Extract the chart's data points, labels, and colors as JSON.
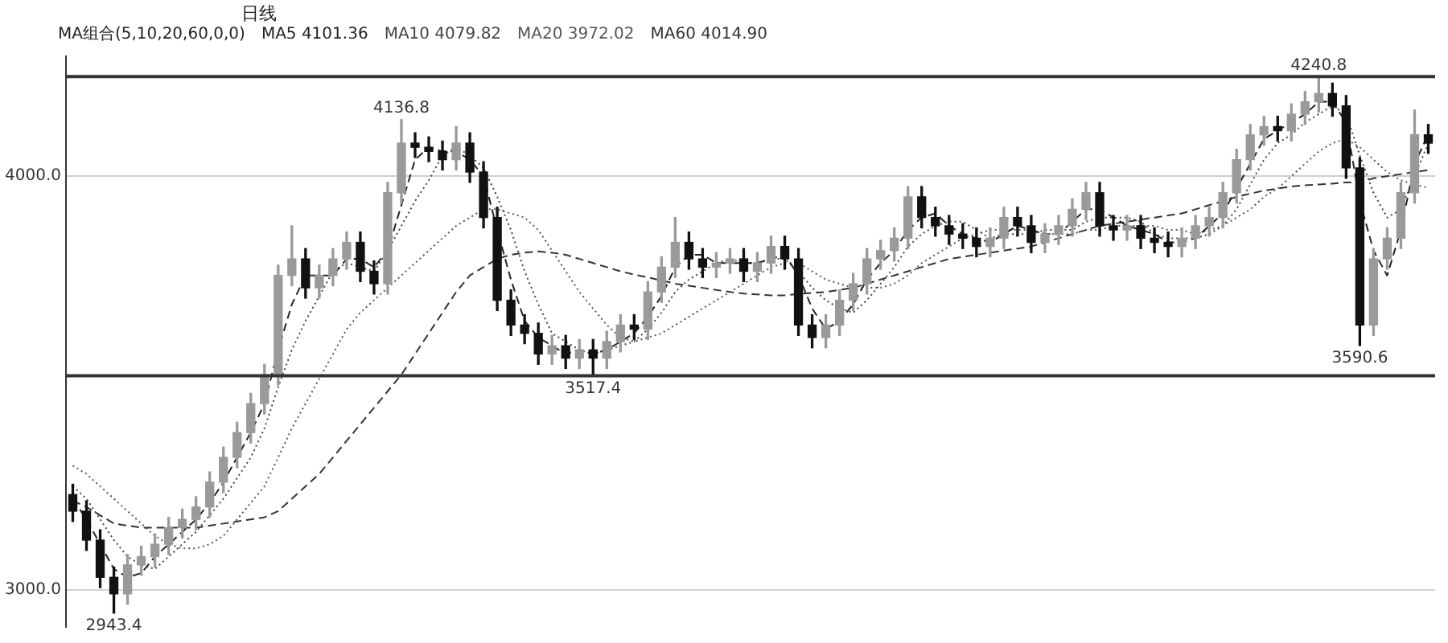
{
  "chart_data": {
    "type": "candlestick",
    "title": "日线",
    "subtitle": "MA组合(5,10,20,60,0,0)",
    "categories": [
      null,
      null,
      null,
      null,
      null,
      null,
      null,
      null,
      null,
      null,
      null,
      null,
      null,
      null,
      null,
      null,
      null,
      null,
      null,
      null,
      null,
      null,
      null,
      null,
      null,
      null,
      null,
      null,
      null,
      null,
      null,
      null,
      null,
      null,
      null,
      null,
      null,
      null,
      null,
      null,
      null,
      null,
      null,
      null,
      null,
      null,
      null,
      null,
      null,
      null,
      null,
      null,
      null,
      null,
      null,
      null,
      null,
      null,
      null,
      null,
      null,
      null,
      null,
      null,
      null,
      null,
      null,
      null,
      null,
      null,
      null,
      null,
      null,
      null,
      null,
      null,
      null,
      null,
      null,
      null,
      null,
      null,
      null,
      null,
      null,
      null,
      null,
      null,
      null,
      null,
      null,
      null,
      null,
      null,
      null,
      null,
      null,
      null,
      null,
      null
    ],
    "ohlc": [
      [
        3230,
        3255,
        3165,
        3190
      ],
      [
        3190,
        3215,
        3095,
        3120
      ],
      [
        3120,
        3145,
        3005,
        3030
      ],
      [
        3030,
        3055,
        2943.4,
        2990
      ],
      [
        2990,
        3085,
        2965,
        3060
      ],
      [
        3060,
        3105,
        3035,
        3080
      ],
      [
        3080,
        3135,
        3055,
        3110
      ],
      [
        3110,
        3175,
        3085,
        3150
      ],
      [
        3150,
        3195,
        3125,
        3170
      ],
      [
        3170,
        3225,
        3145,
        3200
      ],
      [
        3200,
        3285,
        3175,
        3260
      ],
      [
        3260,
        3345,
        3235,
        3320
      ],
      [
        3320,
        3405,
        3295,
        3380
      ],
      [
        3380,
        3475,
        3355,
        3450
      ],
      [
        3450,
        3545,
        3425,
        3520
      ],
      [
        3520,
        3785,
        3495,
        3760
      ],
      [
        3760,
        3880,
        3735,
        3800
      ],
      [
        3800,
        3825,
        3705,
        3730
      ],
      [
        3730,
        3785,
        3705,
        3760
      ],
      [
        3760,
        3825,
        3735,
        3800
      ],
      [
        3800,
        3865,
        3775,
        3840
      ],
      [
        3840,
        3865,
        3745,
        3770
      ],
      [
        3770,
        3795,
        3715,
        3740
      ],
      [
        3740,
        3985,
        3715,
        3960
      ],
      [
        3960,
        4136.8,
        3935,
        4080
      ],
      [
        4080,
        4105,
        4045,
        4070
      ],
      [
        4070,
        4095,
        4035,
        4060
      ],
      [
        4060,
        4085,
        4015,
        4040
      ],
      [
        4040,
        4120,
        4015,
        4080
      ],
      [
        4080,
        4105,
        3985,
        4010
      ],
      [
        4010,
        4035,
        3875,
        3900
      ],
      [
        3900,
        3925,
        3675,
        3700
      ],
      [
        3700,
        3725,
        3615,
        3640
      ],
      [
        3640,
        3665,
        3595,
        3620
      ],
      [
        3620,
        3645,
        3545,
        3570
      ],
      [
        3570,
        3615,
        3545,
        3590
      ],
      [
        3590,
        3615,
        3535,
        3560
      ],
      [
        3560,
        3605,
        3535,
        3580
      ],
      [
        3580,
        3605,
        3517.4,
        3560
      ],
      [
        3560,
        3625,
        3535,
        3600
      ],
      [
        3600,
        3665,
        3575,
        3640
      ],
      [
        3640,
        3665,
        3605,
        3630
      ],
      [
        3630,
        3745,
        3605,
        3720
      ],
      [
        3720,
        3805,
        3695,
        3780
      ],
      [
        3780,
        3900,
        3755,
        3840
      ],
      [
        3840,
        3865,
        3775,
        3800
      ],
      [
        3800,
        3825,
        3755,
        3780
      ],
      [
        3780,
        3815,
        3755,
        3790
      ],
      [
        3790,
        3825,
        3765,
        3800
      ],
      [
        3800,
        3825,
        3745,
        3770
      ],
      [
        3770,
        3815,
        3745,
        3790
      ],
      [
        3790,
        3855,
        3765,
        3830
      ],
      [
        3830,
        3855,
        3775,
        3800
      ],
      [
        3800,
        3825,
        3615,
        3640
      ],
      [
        3640,
        3665,
        3585,
        3610
      ],
      [
        3610,
        3665,
        3585,
        3640
      ],
      [
        3640,
        3725,
        3615,
        3700
      ],
      [
        3700,
        3765,
        3675,
        3740
      ],
      [
        3740,
        3825,
        3715,
        3800
      ],
      [
        3800,
        3845,
        3775,
        3820
      ],
      [
        3820,
        3875,
        3795,
        3850
      ],
      [
        3850,
        3975,
        3825,
        3950
      ],
      [
        3950,
        3975,
        3875,
        3900
      ],
      [
        3900,
        3925,
        3855,
        3880
      ],
      [
        3880,
        3905,
        3835,
        3860
      ],
      [
        3860,
        3885,
        3825,
        3850
      ],
      [
        3850,
        3875,
        3805,
        3830
      ],
      [
        3830,
        3875,
        3805,
        3850
      ],
      [
        3850,
        3925,
        3825,
        3900
      ],
      [
        3900,
        3925,
        3855,
        3880
      ],
      [
        3880,
        3905,
        3815,
        3840
      ],
      [
        3840,
        3885,
        3815,
        3860
      ],
      [
        3860,
        3905,
        3835,
        3880
      ],
      [
        3880,
        3945,
        3855,
        3920
      ],
      [
        3920,
        3985,
        3895,
        3960
      ],
      [
        3960,
        3985,
        3855,
        3880
      ],
      [
        3880,
        3905,
        3845,
        3870
      ],
      [
        3870,
        3905,
        3845,
        3880
      ],
      [
        3880,
        3905,
        3825,
        3850
      ],
      [
        3850,
        3875,
        3815,
        3840
      ],
      [
        3840,
        3865,
        3805,
        3830
      ],
      [
        3830,
        3875,
        3805,
        3850
      ],
      [
        3850,
        3905,
        3825,
        3880
      ],
      [
        3880,
        3925,
        3855,
        3900
      ],
      [
        3900,
        3985,
        3875,
        3960
      ],
      [
        3960,
        4065,
        3935,
        4040
      ],
      [
        4040,
        4125,
        4015,
        4100
      ],
      [
        4100,
        4145,
        4075,
        4120
      ],
      [
        4120,
        4145,
        4085,
        4110
      ],
      [
        4110,
        4175,
        4085,
        4150
      ],
      [
        4150,
        4205,
        4125,
        4180
      ],
      [
        4180,
        4240.8,
        4155,
        4200
      ],
      [
        4200,
        4225,
        4145,
        4170
      ],
      [
        4170,
        4195,
        3995,
        4020
      ],
      [
        4020,
        4045,
        3590.6,
        3640
      ],
      [
        3640,
        3825,
        3615,
        3800
      ],
      [
        3800,
        3875,
        3775,
        3850
      ],
      [
        3850,
        3985,
        3825,
        3960
      ],
      [
        3960,
        4160,
        3935,
        4100
      ],
      [
        4100,
        4125,
        4055,
        4080
      ]
    ],
    "series": [
      {
        "name": "MA5",
        "type": "line",
        "color": "#222222",
        "line_style": "dashed",
        "values": [
          3220,
          3170,
          3110,
          3050,
          3030,
          3040,
          3080,
          3110,
          3140,
          3170,
          3210,
          3260,
          3320,
          3380,
          3450,
          3580,
          3690,
          3760,
          3760,
          3760,
          3800,
          3800,
          3780,
          3820,
          3930,
          4040,
          4070,
          4060,
          4060,
          4040,
          4000,
          3870,
          3750,
          3650,
          3610,
          3590,
          3570,
          3580,
          3570,
          3580,
          3600,
          3620,
          3660,
          3710,
          3780,
          3810,
          3810,
          3790,
          3790,
          3790,
          3790,
          3800,
          3810,
          3760,
          3680,
          3630,
          3650,
          3690,
          3750,
          3790,
          3820,
          3870,
          3900,
          3910,
          3880,
          3860,
          3850,
          3840,
          3860,
          3880,
          3870,
          3860,
          3860,
          3890,
          3920,
          3920,
          3900,
          3880,
          3870,
          3860,
          3840,
          3840,
          3850,
          3880,
          3910,
          3970,
          4030,
          4090,
          4110,
          4130,
          4150,
          4180,
          4180,
          4130,
          3940,
          3820,
          3760,
          3870,
          4030,
          4101.36
        ],
        "value_labels": [
          null,
          null,
          null,
          null,
          null,
          null,
          null,
          null,
          null,
          null,
          null,
          null,
          null,
          null,
          null,
          null,
          null,
          null,
          null,
          null,
          null,
          null,
          null,
          null,
          null,
          null,
          null,
          null,
          null,
          null,
          null,
          null,
          null,
          null,
          null,
          null,
          null,
          null,
          null,
          null,
          null,
          null,
          null,
          null,
          null,
          null,
          null,
          null,
          null,
          null,
          null,
          null,
          null,
          null,
          null,
          null,
          null,
          null,
          null,
          null,
          null,
          null,
          null,
          null,
          null,
          null,
          null,
          null,
          null,
          null,
          null,
          null,
          null,
          null,
          null,
          null,
          null,
          null,
          null,
          null,
          null,
          null,
          null,
          null,
          null,
          null,
          null,
          null,
          null,
          null,
          null,
          null,
          null,
          null,
          null,
          null,
          null,
          null,
          null,
          "4101.36"
        ]
      },
      {
        "name": "MA10",
        "type": "line",
        "color": "#444444",
        "line_style": "dotted",
        "values": [
          3250,
          3220,
          3170,
          3120,
          3080,
          3060,
          3050,
          3080,
          3110,
          3140,
          3180,
          3220,
          3270,
          3320,
          3390,
          3490,
          3580,
          3650,
          3710,
          3770,
          3790,
          3780,
          3770,
          3820,
          3880,
          3940,
          3990,
          4050,
          4070,
          4050,
          4020,
          3950,
          3870,
          3770,
          3690,
          3620,
          3600,
          3580,
          3570,
          3580,
          3590,
          3600,
          3630,
          3670,
          3720,
          3750,
          3770,
          3790,
          3800,
          3790,
          3790,
          3800,
          3800,
          3770,
          3730,
          3700,
          3680,
          3670,
          3700,
          3740,
          3780,
          3830,
          3860,
          3880,
          3890,
          3890,
          3870,
          3850,
          3860,
          3860,
          3860,
          3870,
          3870,
          3870,
          3890,
          3900,
          3900,
          3900,
          3890,
          3860,
          3850,
          3850,
          3850,
          3860,
          3880,
          3920,
          3980,
          4040,
          4080,
          4100,
          4130,
          4150,
          4170,
          4150,
          4050,
          3960,
          3900,
          3920,
          4000,
          4079.82
        ],
        "value_labels": [
          null,
          null,
          null,
          null,
          null,
          null,
          null,
          null,
          null,
          null,
          null,
          null,
          null,
          null,
          null,
          null,
          null,
          null,
          null,
          null,
          null,
          null,
          null,
          null,
          null,
          null,
          null,
          null,
          null,
          null,
          null,
          null,
          null,
          null,
          null,
          null,
          null,
          null,
          null,
          null,
          null,
          null,
          null,
          null,
          null,
          null,
          null,
          null,
          null,
          null,
          null,
          null,
          null,
          null,
          null,
          null,
          null,
          null,
          null,
          null,
          null,
          null,
          null,
          null,
          null,
          null,
          null,
          null,
          null,
          null,
          null,
          null,
          null,
          null,
          null,
          null,
          null,
          null,
          null,
          null,
          null,
          null,
          null,
          null,
          null,
          null,
          null,
          null,
          null,
          null,
          null,
          null,
          null,
          null,
          null,
          null,
          null,
          null,
          null,
          "4079.82"
        ]
      },
      {
        "name": "MA20",
        "type": "line",
        "color": "#555555",
        "line_style": "dotted",
        "values": [
          3300,
          3280,
          3250,
          3220,
          3190,
          3160,
          3130,
          3110,
          3100,
          3100,
          3110,
          3130,
          3170,
          3210,
          3250,
          3320,
          3390,
          3450,
          3510,
          3570,
          3630,
          3670,
          3700,
          3730,
          3760,
          3790,
          3820,
          3850,
          3880,
          3900,
          3920,
          3920,
          3910,
          3900,
          3870,
          3820,
          3770,
          3720,
          3680,
          3640,
          3610,
          3600,
          3610,
          3620,
          3640,
          3660,
          3680,
          3700,
          3720,
          3740,
          3760,
          3780,
          3790,
          3790,
          3770,
          3750,
          3740,
          3730,
          3730,
          3730,
          3740,
          3760,
          3790,
          3810,
          3830,
          3850,
          3860,
          3870,
          3870,
          3870,
          3870,
          3860,
          3860,
          3860,
          3870,
          3870,
          3880,
          3880,
          3880,
          3880,
          3870,
          3870,
          3860,
          3870,
          3880,
          3900,
          3920,
          3950,
          3970,
          4000,
          4030,
          4060,
          4080,
          4090,
          4070,
          4040,
          4010,
          3990,
          3980,
          3972.02
        ],
        "value_labels": [
          null,
          null,
          null,
          null,
          null,
          null,
          null,
          null,
          null,
          null,
          null,
          null,
          null,
          null,
          null,
          null,
          null,
          null,
          null,
          null,
          null,
          null,
          null,
          null,
          null,
          null,
          null,
          null,
          null,
          null,
          null,
          null,
          null,
          null,
          null,
          null,
          null,
          null,
          null,
          null,
          null,
          null,
          null,
          null,
          null,
          null,
          null,
          null,
          null,
          null,
          null,
          null,
          null,
          null,
          null,
          null,
          null,
          null,
          null,
          null,
          null,
          null,
          null,
          null,
          null,
          null,
          null,
          null,
          null,
          null,
          null,
          null,
          null,
          null,
          null,
          null,
          null,
          null,
          null,
          null,
          null,
          null,
          null,
          null,
          null,
          null,
          null,
          null,
          null,
          null,
          null,
          null,
          null,
          null,
          null,
          null,
          null,
          null,
          null,
          "3972.02"
        ]
      },
      {
        "name": "MA60",
        "type": "line",
        "color": "#333333",
        "line_style": "dashed",
        "values": [
          3215,
          3200,
          3180,
          3160,
          3155,
          3150,
          3150,
          3150,
          3150,
          3150,
          3155,
          3160,
          3165,
          3170,
          3175,
          3190,
          3220,
          3250,
          3280,
          3320,
          3360,
          3400,
          3440,
          3480,
          3520,
          3570,
          3620,
          3670,
          3720,
          3760,
          3780,
          3800,
          3810,
          3815,
          3818,
          3815,
          3810,
          3800,
          3790,
          3780,
          3770,
          3762,
          3755,
          3748,
          3740,
          3735,
          3730,
          3725,
          3720,
          3716,
          3714,
          3712,
          3712,
          3715,
          3718,
          3720,
          3725,
          3730,
          3740,
          3750,
          3760,
          3770,
          3780,
          3790,
          3800,
          3805,
          3810,
          3815,
          3820,
          3825,
          3830,
          3840,
          3850,
          3860,
          3870,
          3880,
          3885,
          3890,
          3895,
          3900,
          3905,
          3910,
          3920,
          3930,
          3940,
          3950,
          3958,
          3965,
          3970,
          3975,
          3978,
          3980,
          3982,
          3985,
          3985,
          3995,
          4000,
          4005,
          4010,
          4014.9
        ],
        "value_labels": [
          null,
          null,
          null,
          null,
          null,
          null,
          null,
          null,
          null,
          null,
          null,
          null,
          null,
          null,
          null,
          null,
          null,
          null,
          null,
          null,
          null,
          null,
          null,
          null,
          null,
          null,
          null,
          null,
          null,
          null,
          null,
          null,
          null,
          null,
          null,
          null,
          null,
          null,
          null,
          null,
          null,
          null,
          null,
          null,
          null,
          null,
          null,
          null,
          null,
          null,
          null,
          null,
          null,
          null,
          null,
          null,
          null,
          null,
          null,
          null,
          null,
          null,
          null,
          null,
          null,
          null,
          null,
          null,
          null,
          null,
          null,
          null,
          null,
          null,
          null,
          null,
          null,
          null,
          null,
          null,
          null,
          null,
          null,
          null,
          null,
          null,
          null,
          null,
          null,
          null,
          null,
          null,
          null,
          null,
          null,
          null,
          null,
          null,
          null,
          "4014.90"
        ]
      }
    ],
    "ylim": [
      2910,
      4290
    ],
    "yticks": [
      {
        "value": 3000,
        "label": "3000.0"
      },
      {
        "value": 4000,
        "label": "4000.0"
      }
    ],
    "tick_labels": "y",
    "grid": "y",
    "marker": "none",
    "ref_lines": [
      {
        "axis": "y",
        "value": 4240.8
      },
      {
        "axis": "y",
        "value": 3517.4
      }
    ],
    "annotations": [
      {
        "text": "4136.8",
        "y": 4136.8
      },
      {
        "text": "4240.8",
        "y": 4240.8
      },
      {
        "text": "3517.4",
        "y": 3517.4
      },
      {
        "text": "3590.6",
        "y": 3590.6
      },
      {
        "text": "2943.4",
        "y": 2943.4
      }
    ]
  }
}
